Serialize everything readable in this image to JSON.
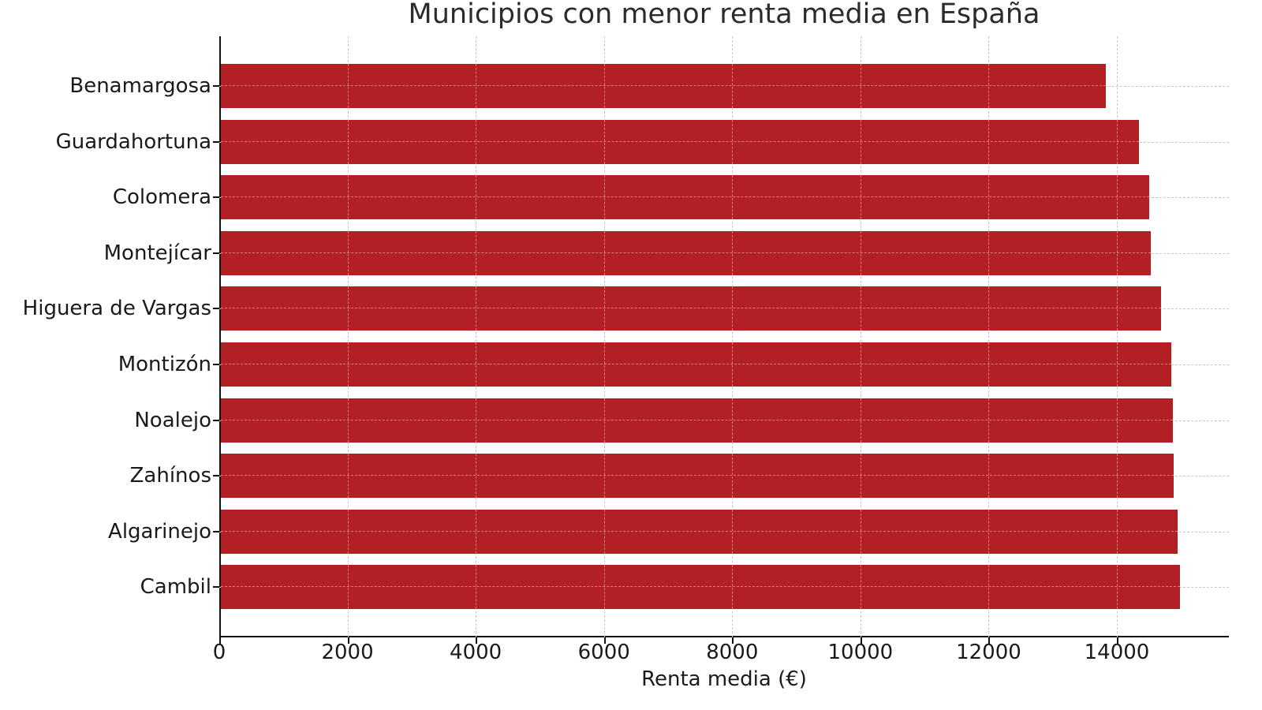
{
  "chart_data": {
    "type": "bar",
    "orientation": "horizontal",
    "title": "Municipios con menor renta media en España",
    "xlabel": "Renta media (€)",
    "ylabel": "",
    "categories": [
      "Benamargosa",
      "Guardahortuna",
      "Colomera",
      "Montejícar",
      "Higuera de Vargas",
      "Montizón",
      "Noalejo",
      "Zahínos",
      "Algarinejo",
      "Cambil"
    ],
    "values": [
      13830,
      14340,
      14510,
      14530,
      14690,
      14850,
      14870,
      14890,
      14950,
      14980
    ],
    "xlim": [
      0,
      15750
    ],
    "xticks": [
      "0",
      "2000",
      "4000",
      "6000",
      "8000",
      "10000",
      "12000",
      "14000"
    ],
    "grid": true,
    "grid_style": "dashed",
    "bar_color": "#b22024",
    "legend": null
  }
}
